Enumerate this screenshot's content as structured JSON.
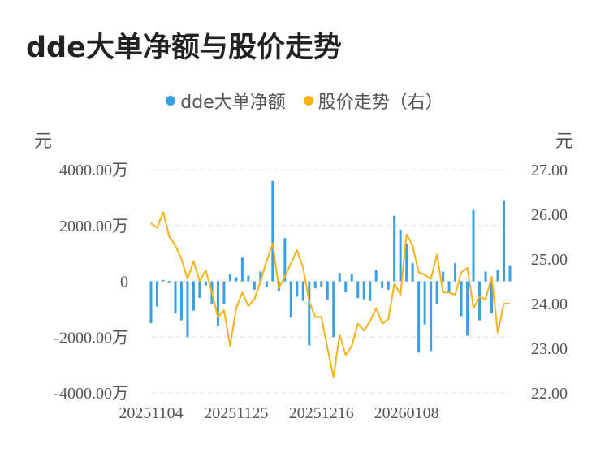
{
  "chart_data": {
    "type": "bar+line",
    "title": "dde大单净额与股价走势",
    "legend": [
      {
        "name": "dde大单净额",
        "color": "#3aa0e6"
      },
      {
        "name": "股价走势（右）",
        "color": "#f5b21b"
      }
    ],
    "legend_position": "top-center",
    "ylabel_left": "元",
    "ylabel_right": "元",
    "yleft": {
      "min": -4000,
      "max": 4000,
      "ticks": [
        {
          "value": 4000,
          "label": "4000.00万"
        },
        {
          "value": 2000,
          "label": "2000.00万"
        },
        {
          "value": 0,
          "label": "0"
        },
        {
          "value": -2000,
          "label": "-2000.00万"
        },
        {
          "value": -4000,
          "label": "-4000.00万"
        }
      ]
    },
    "yright": {
      "min": 22,
      "max": 27,
      "ticks": [
        {
          "value": 27,
          "label": "27.00"
        },
        {
          "value": 26,
          "label": "26.00"
        },
        {
          "value": 25,
          "label": "25.00"
        },
        {
          "value": 24,
          "label": "24.00"
        },
        {
          "value": 23,
          "label": "23.00"
        },
        {
          "value": 22,
          "label": "22.00"
        }
      ]
    },
    "x_tick_labels": [
      {
        "index": 0,
        "label": "20251104"
      },
      {
        "index": 14,
        "label": "20251125"
      },
      {
        "index": 28,
        "label": "20251216"
      },
      {
        "index": 42,
        "label": "20260108"
      }
    ],
    "grid": true,
    "series": [
      {
        "name": "dde大单净额",
        "type": "bar",
        "color": "#3aa0e6",
        "values": [
          -1500,
          -900,
          50,
          -50,
          -1150,
          -1400,
          -2000,
          -1050,
          -600,
          -150,
          -800,
          -1600,
          -800,
          250,
          150,
          850,
          200,
          -300,
          350,
          -200,
          3600,
          -350,
          1550,
          -1300,
          -550,
          -700,
          -2300,
          -250,
          -200,
          -650,
          -2000,
          300,
          -400,
          250,
          -600,
          -650,
          -700,
          400,
          -250,
          -300,
          2350,
          1850,
          1350,
          650,
          -2550,
          -1550,
          -2500,
          -800,
          350,
          -400,
          650,
          -1250,
          -1950,
          2550,
          -1400,
          350,
          -1150,
          400,
          2900,
          550
        ]
      },
      {
        "name": "股价走势（右）",
        "type": "line",
        "color": "#f5b21b",
        "values": [
          25.8,
          25.7,
          26.05,
          25.5,
          25.3,
          25.0,
          24.55,
          24.95,
          24.5,
          24.75,
          24.25,
          23.7,
          23.85,
          23.05,
          23.9,
          24.25,
          23.95,
          24.1,
          24.5,
          24.95,
          25.35,
          24.35,
          24.6,
          24.9,
          25.2,
          24.8,
          24.05,
          23.7,
          23.7,
          23.0,
          22.35,
          23.3,
          22.85,
          23.05,
          23.55,
          23.4,
          23.6,
          23.9,
          23.55,
          23.65,
          24.45,
          24.2,
          25.55,
          25.3,
          24.7,
          24.65,
          24.55,
          25.1,
          24.25,
          24.25,
          24.2,
          24.7,
          24.8,
          23.9,
          24.15,
          24.1,
          24.6,
          23.35,
          24.0,
          24.0
        ]
      }
    ]
  }
}
